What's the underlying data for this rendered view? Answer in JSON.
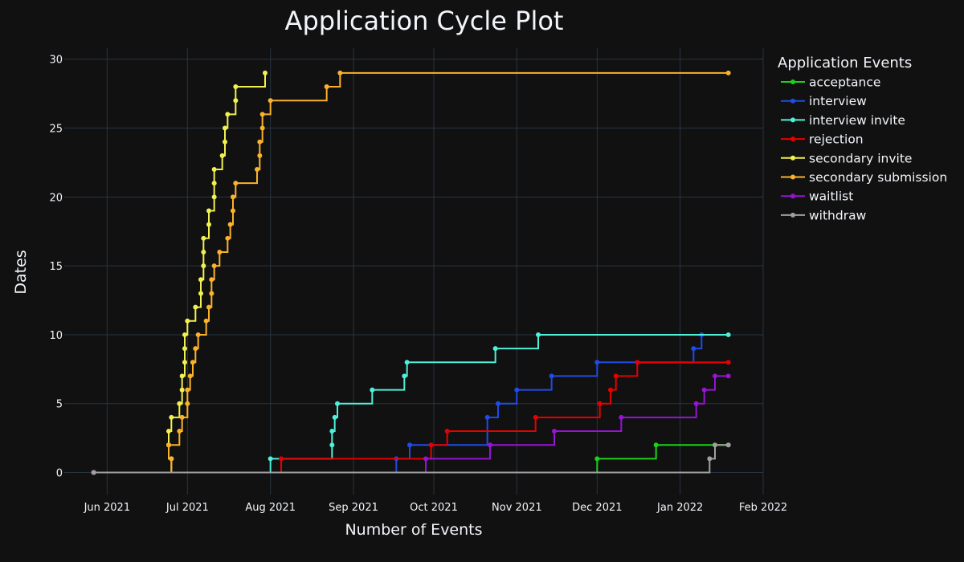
{
  "chart_data": {
    "type": "line",
    "line_shape": "step",
    "title": "Application Cycle Plot",
    "xlabel": "Number of Events",
    "ylabel": "Dates",
    "xlim": [
      "2021-05-16",
      "2022-02-01"
    ],
    "ylim": [
      -1.6,
      30.8
    ],
    "x_ticks": [
      {
        "date": "2021-06-01",
        "label": "Jun 2021"
      },
      {
        "date": "2021-07-01",
        "label": "Jul 2021"
      },
      {
        "date": "2021-08-01",
        "label": "Aug 2021"
      },
      {
        "date": "2021-09-01",
        "label": "Sep 2021"
      },
      {
        "date": "2021-10-01",
        "label": "Oct 2021"
      },
      {
        "date": "2021-11-01",
        "label": "Nov 2021"
      },
      {
        "date": "2021-12-01",
        "label": "Dec 2021"
      },
      {
        "date": "2022-01-01",
        "label": "Jan 2022"
      },
      {
        "date": "2022-02-01",
        "label": "Feb 2022"
      }
    ],
    "y_ticks": [
      0,
      5,
      10,
      15,
      20,
      25,
      30
    ],
    "grid": true,
    "legend": {
      "title": "Application Events",
      "position": "top-right"
    },
    "series": [
      {
        "name": "acceptance",
        "color": "#19d219",
        "points": [
          [
            "2021-05-27",
            0
          ],
          [
            "2021-12-01",
            1
          ],
          [
            "2021-12-23",
            2
          ],
          [
            "2022-01-19",
            2
          ]
        ]
      },
      {
        "name": "interview",
        "color": "#1f4ce6",
        "points": [
          [
            "2021-05-27",
            0
          ],
          [
            "2021-09-17",
            1
          ],
          [
            "2021-09-22",
            2
          ],
          [
            "2021-10-21",
            4
          ],
          [
            "2021-10-25",
            5
          ],
          [
            "2021-11-01",
            6
          ],
          [
            "2021-11-14",
            7
          ],
          [
            "2021-12-01",
            8
          ],
          [
            "2022-01-06",
            9
          ],
          [
            "2022-01-09",
            10
          ]
        ]
      },
      {
        "name": "interview invite",
        "color": "#4ff0d8",
        "points": [
          [
            "2021-05-27",
            0
          ],
          [
            "2021-08-01",
            1
          ],
          [
            "2021-08-24",
            2
          ],
          [
            "2021-08-24",
            3
          ],
          [
            "2021-08-25",
            4
          ],
          [
            "2021-08-26",
            5
          ],
          [
            "2021-09-08",
            6
          ],
          [
            "2021-09-20",
            7
          ],
          [
            "2021-09-21",
            8
          ],
          [
            "2021-10-24",
            9
          ],
          [
            "2021-11-09",
            10
          ],
          [
            "2022-01-19",
            10
          ]
        ]
      },
      {
        "name": "rejection",
        "color": "#e60000",
        "points": [
          [
            "2021-05-27",
            0
          ],
          [
            "2021-08-05",
            1
          ],
          [
            "2021-09-30",
            2
          ],
          [
            "2021-10-06",
            3
          ],
          [
            "2021-11-08",
            4
          ],
          [
            "2021-12-02",
            5
          ],
          [
            "2021-12-06",
            6
          ],
          [
            "2021-12-08",
            7
          ],
          [
            "2021-12-16",
            8
          ],
          [
            "2022-01-19",
            8
          ]
        ]
      },
      {
        "name": "secondary invite",
        "color": "#f0f050",
        "points": [
          [
            "2021-05-27",
            0
          ],
          [
            "2021-06-25",
            1
          ],
          [
            "2021-06-24",
            2
          ],
          [
            "2021-06-24",
            3
          ],
          [
            "2021-06-25",
            4
          ],
          [
            "2021-06-28",
            5
          ],
          [
            "2021-06-29",
            6
          ],
          [
            "2021-06-29",
            7
          ],
          [
            "2021-06-30",
            8
          ],
          [
            "2021-06-30",
            9
          ],
          [
            "2021-06-30",
            10
          ],
          [
            "2021-07-01",
            11
          ],
          [
            "2021-07-04",
            12
          ],
          [
            "2021-07-06",
            13
          ],
          [
            "2021-07-06",
            14
          ],
          [
            "2021-07-07",
            15
          ],
          [
            "2021-07-07",
            16
          ],
          [
            "2021-07-07",
            17
          ],
          [
            "2021-07-09",
            18
          ],
          [
            "2021-07-09",
            19
          ],
          [
            "2021-07-11",
            20
          ],
          [
            "2021-07-11",
            21
          ],
          [
            "2021-07-11",
            22
          ],
          [
            "2021-07-14",
            23
          ],
          [
            "2021-07-15",
            24
          ],
          [
            "2021-07-15",
            25
          ],
          [
            "2021-07-16",
            26
          ],
          [
            "2021-07-19",
            27
          ],
          [
            "2021-07-19",
            28
          ],
          [
            "2021-07-30",
            29
          ]
        ]
      },
      {
        "name": "secondary submission",
        "color": "#fbb22b",
        "points": [
          [
            "2021-05-27",
            0
          ],
          [
            "2021-06-25",
            1
          ],
          [
            "2021-06-24",
            2
          ],
          [
            "2021-06-28",
            3
          ],
          [
            "2021-06-29",
            4
          ],
          [
            "2021-07-01",
            5
          ],
          [
            "2021-07-01",
            6
          ],
          [
            "2021-07-02",
            7
          ],
          [
            "2021-07-03",
            8
          ],
          [
            "2021-07-04",
            9
          ],
          [
            "2021-07-05",
            10
          ],
          [
            "2021-07-08",
            11
          ],
          [
            "2021-07-09",
            12
          ],
          [
            "2021-07-10",
            13
          ],
          [
            "2021-07-10",
            14
          ],
          [
            "2021-07-11",
            15
          ],
          [
            "2021-07-13",
            16
          ],
          [
            "2021-07-16",
            17
          ],
          [
            "2021-07-17",
            18
          ],
          [
            "2021-07-18",
            19
          ],
          [
            "2021-07-18",
            20
          ],
          [
            "2021-07-19",
            21
          ],
          [
            "2021-07-27",
            22
          ],
          [
            "2021-07-28",
            23
          ],
          [
            "2021-07-28",
            24
          ],
          [
            "2021-07-29",
            25
          ],
          [
            "2021-07-29",
            26
          ],
          [
            "2021-08-01",
            27
          ],
          [
            "2021-08-22",
            28
          ],
          [
            "2021-08-27",
            29
          ],
          [
            "2022-01-19",
            29
          ]
        ]
      },
      {
        "name": "waitlist",
        "color": "#9614d2",
        "points": [
          [
            "2021-05-27",
            0
          ],
          [
            "2021-09-28",
            1
          ],
          [
            "2021-10-22",
            2
          ],
          [
            "2021-11-15",
            3
          ],
          [
            "2021-12-10",
            4
          ],
          [
            "2022-01-07",
            5
          ],
          [
            "2022-01-10",
            6
          ],
          [
            "2022-01-14",
            7
          ],
          [
            "2022-01-19",
            7
          ]
        ]
      },
      {
        "name": "withdraw",
        "color": "#a0a0a0",
        "points": [
          [
            "2021-05-27",
            0
          ],
          [
            "2022-01-12",
            1
          ],
          [
            "2022-01-14",
            2
          ],
          [
            "2022-01-19",
            2
          ]
        ]
      }
    ]
  }
}
